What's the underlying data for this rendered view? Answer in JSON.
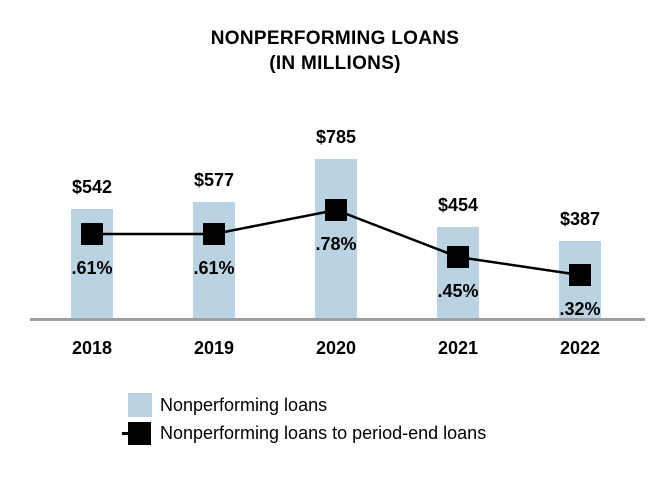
{
  "title": {
    "line1": "NONPERFORMING LOANS",
    "line2": "(IN MILLIONS)"
  },
  "chart_data": {
    "type": "bar",
    "title": "NONPERFORMING LOANS (IN MILLIONS)",
    "categories": [
      "2018",
      "2019",
      "2020",
      "2021",
      "2022"
    ],
    "series": [
      {
        "name": "Nonperforming loans",
        "type": "bar",
        "values": [
          542,
          577,
          785,
          454,
          387
        ],
        "labels": [
          "$542",
          "$577",
          "$785",
          "$454",
          "$387"
        ],
        "unit": "USD millions",
        "color": "#BAD3E2"
      },
      {
        "name": "Nonperforming loans to period-end loans",
        "type": "line",
        "values": [
          0.61,
          0.61,
          0.78,
          0.45,
          0.32
        ],
        "labels": [
          ".61%",
          ".61%",
          ".78%",
          ".45%",
          ".32%"
        ],
        "unit": "percent",
        "color": "#000000"
      }
    ],
    "xlabel": "",
    "ylabel": "",
    "ylim": [
      0,
      850
    ],
    "grid": false,
    "legend_position": "bottom"
  },
  "legend": {
    "items": [
      {
        "label": "Nonperforming loans",
        "swatch": "bar-swatch"
      },
      {
        "label": "Nonperforming loans to period-end loans",
        "swatch": "line-marker-swatch"
      }
    ]
  },
  "colors": {
    "bar": "#BAD3E2",
    "line": "#000000",
    "axis": "#9E9E9E",
    "text": "#000000",
    "background": "#FFFFFF"
  }
}
